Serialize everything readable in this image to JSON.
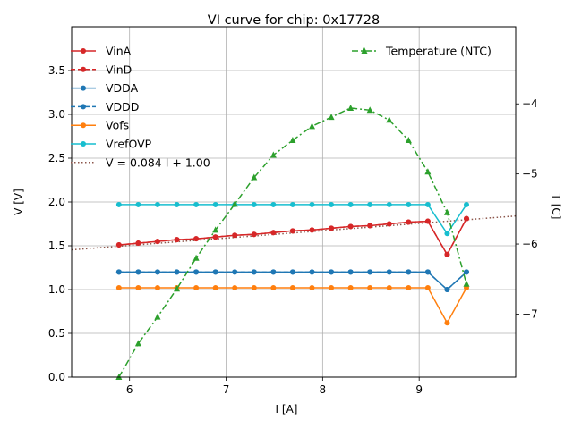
{
  "chart_data": {
    "type": "line",
    "title": "VI curve for chip: 0x17728",
    "xlabel": "I [A]",
    "ylabel": "V [V]",
    "y2label": "T [C]",
    "xlim": [
      5.4,
      10.0
    ],
    "ylim": [
      0.0,
      4.0
    ],
    "y2lim": [
      -7.9,
      -2.9
    ],
    "xticks": [
      6,
      7,
      8,
      9
    ],
    "yticks": [
      0.0,
      0.5,
      1.0,
      1.5,
      2.0,
      2.5,
      3.0,
      3.5
    ],
    "y2ticks": [
      -7,
      -6,
      -5,
      -4
    ],
    "grid": true,
    "x": [
      5.89,
      6.09,
      6.29,
      6.49,
      6.69,
      6.89,
      7.09,
      7.29,
      7.49,
      7.69,
      7.89,
      8.09,
      8.29,
      8.49,
      8.69,
      8.89,
      9.09,
      9.29,
      9.49
    ],
    "series": [
      {
        "name": "VinA",
        "axis": "left",
        "color": "#d62728",
        "linestyle": "solid",
        "marker": "circle",
        "values": [
          1.51,
          1.53,
          1.55,
          1.57,
          1.58,
          1.6,
          1.62,
          1.63,
          1.65,
          1.67,
          1.68,
          1.7,
          1.72,
          1.73,
          1.75,
          1.77,
          1.78,
          1.4,
          1.81
        ]
      },
      {
        "name": "VinD",
        "axis": "left",
        "color": "#d62728",
        "linestyle": "dashed",
        "marker": "circle",
        "values": [
          1.51,
          1.53,
          1.55,
          1.57,
          1.58,
          1.6,
          1.62,
          1.63,
          1.65,
          1.67,
          1.68,
          1.7,
          1.72,
          1.73,
          1.75,
          1.77,
          1.78,
          1.4,
          1.81
        ]
      },
      {
        "name": "VDDA",
        "axis": "left",
        "color": "#1f77b4",
        "linestyle": "solid",
        "marker": "circle",
        "values": [
          1.2,
          1.2,
          1.2,
          1.2,
          1.2,
          1.2,
          1.2,
          1.2,
          1.2,
          1.2,
          1.2,
          1.2,
          1.2,
          1.2,
          1.2,
          1.2,
          1.2,
          1.0,
          1.2
        ]
      },
      {
        "name": "VDDD",
        "axis": "left",
        "color": "#1f77b4",
        "linestyle": "dashed",
        "marker": "circle",
        "values": [
          1.2,
          1.2,
          1.2,
          1.2,
          1.2,
          1.2,
          1.2,
          1.2,
          1.2,
          1.2,
          1.2,
          1.2,
          1.2,
          1.2,
          1.2,
          1.2,
          1.2,
          1.0,
          1.2
        ]
      },
      {
        "name": "Vofs",
        "axis": "left",
        "color": "#ff7f0e",
        "linestyle": "solid",
        "marker": "circle",
        "values": [
          1.02,
          1.02,
          1.02,
          1.02,
          1.02,
          1.02,
          1.02,
          1.02,
          1.02,
          1.02,
          1.02,
          1.02,
          1.02,
          1.02,
          1.02,
          1.02,
          1.02,
          0.62,
          1.02
        ]
      },
      {
        "name": "VrefOVP",
        "axis": "left",
        "color": "#17becf",
        "linestyle": "solid",
        "marker": "circle",
        "values": [
          1.97,
          1.97,
          1.97,
          1.97,
          1.97,
          1.97,
          1.97,
          1.97,
          1.97,
          1.97,
          1.97,
          1.97,
          1.97,
          1.97,
          1.97,
          1.97,
          1.97,
          1.64,
          1.97
        ]
      },
      {
        "name": "Temperature (NTC)",
        "axis": "right",
        "color": "#2ca02c",
        "linestyle": "dashdot",
        "marker": "triangle",
        "values": [
          -7.9,
          -7.42,
          -7.04,
          -6.64,
          -6.2,
          -5.8,
          -5.43,
          -5.05,
          -4.73,
          -4.52,
          -4.32,
          -4.19,
          -4.06,
          -4.09,
          -4.23,
          -4.52,
          -4.97,
          -5.55,
          -6.57
        ]
      }
    ],
    "fit": {
      "name": "V = 0.084 I + 1.00",
      "slope": 0.084,
      "intercept": 1.0,
      "color": "#8c564b",
      "linestyle": "dotted"
    },
    "legend_left": "upper-left",
    "legend_right": "upper-right"
  }
}
